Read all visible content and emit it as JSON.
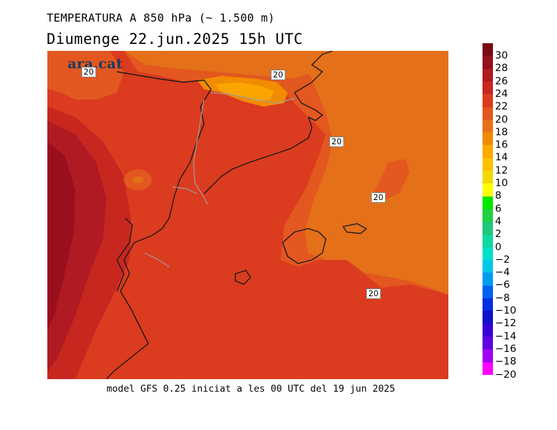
{
  "header": {
    "title": "TEMPERATURA A 850 hPa (~ 1.500 m)",
    "subtitle": "Diumenge  22.jun.2025  15h UTC"
  },
  "logo": {
    "text": "ara.cat"
  },
  "contour_labels": [
    "20",
    "20",
    "20",
    "20",
    "20"
  ],
  "footer": {
    "text": "model GFS 0.25 iniciat a les 00 UTC del 19 jun 2025"
  },
  "legend": {
    "ticks": [
      "30",
      "28",
      "26",
      "24",
      "22",
      "20",
      "18",
      "16",
      "14",
      "12",
      "10",
      "8",
      "6",
      "4",
      "2",
      "0",
      "−2",
      "−4",
      "−6",
      "−8",
      "−10",
      "−12",
      "−14",
      "−16",
      "−18",
      "−20"
    ],
    "colors": [
      "#7a0a14",
      "#960f1d",
      "#b01a22",
      "#c8261f",
      "#dc3a1f",
      "#e2551e",
      "#e8701a",
      "#f08a00",
      "#fba800",
      "#fcc200",
      "#f4d800",
      "#ffff00",
      "#00e800",
      "#22d040",
      "#1ec878",
      "#10d8a0",
      "#00e0c8",
      "#00c8e8",
      "#009cf0",
      "#0060f0",
      "#0030e0",
      "#1010c8",
      "#3800d8",
      "#6000e0",
      "#a000f0",
      "#ff00ff"
    ]
  },
  "map": {
    "colors": {
      "c20": "#e35720",
      "c18": "#e4701a",
      "c22": "#db3b1f",
      "c24": "#c7271f",
      "c26": "#b01a22",
      "c28": "#9a0f1d",
      "c16": "#f18c00",
      "c14": "#fba600",
      "coast": "#1a1a1a",
      "border": "#a0a0a0"
    }
  }
}
